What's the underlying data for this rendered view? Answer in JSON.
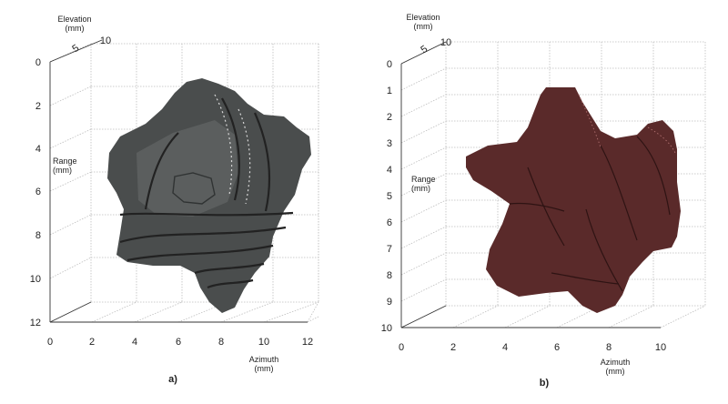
{
  "panels": [
    {
      "caption": "a)",
      "z_label": "Elevation",
      "z_unit": "(mm)",
      "y_label": "Range",
      "y_unit": "(mm)",
      "x_label": "Azimuth",
      "x_unit": "(mm)",
      "z_ticks": [
        "5",
        "10"
      ],
      "y_ticks": [
        "0",
        "2",
        "4",
        "6",
        "8",
        "10",
        "12"
      ],
      "x_ticks": [
        "0",
        "2",
        "4",
        "6",
        "8",
        "10",
        "12"
      ],
      "object_color": "#4a4d4d"
    },
    {
      "caption": "b)",
      "z_label": "Elevation",
      "z_unit": "(mm)",
      "y_label": "Range",
      "y_unit": "(mm)",
      "x_label": "Azimuth",
      "x_unit": "(mm)",
      "z_ticks": [
        "5",
        "10"
      ],
      "y_ticks": [
        "0",
        "1",
        "2",
        "3",
        "4",
        "5",
        "6",
        "7",
        "8",
        "9",
        "10"
      ],
      "x_ticks": [
        "0",
        "2",
        "4",
        "6",
        "8",
        "10"
      ],
      "object_color": "#5a2a2a"
    }
  ],
  "chart_data": [
    {
      "type": "3d-surface",
      "title": "",
      "xlabel": "Azimuth (mm)",
      "ylabel": "Range (mm)",
      "zlabel": "Elevation (mm)",
      "xlim": [
        0,
        12
      ],
      "ylim": [
        0,
        12
      ],
      "zlim": [
        0,
        10
      ],
      "grid": true
    },
    {
      "type": "3d-surface",
      "title": "",
      "xlabel": "Azimuth (mm)",
      "ylabel": "Range (mm)",
      "zlabel": "Elevation (mm)",
      "xlim": [
        0,
        10
      ],
      "ylim": [
        0,
        10
      ],
      "zlim": [
        0,
        10
      ],
      "grid": true
    }
  ]
}
